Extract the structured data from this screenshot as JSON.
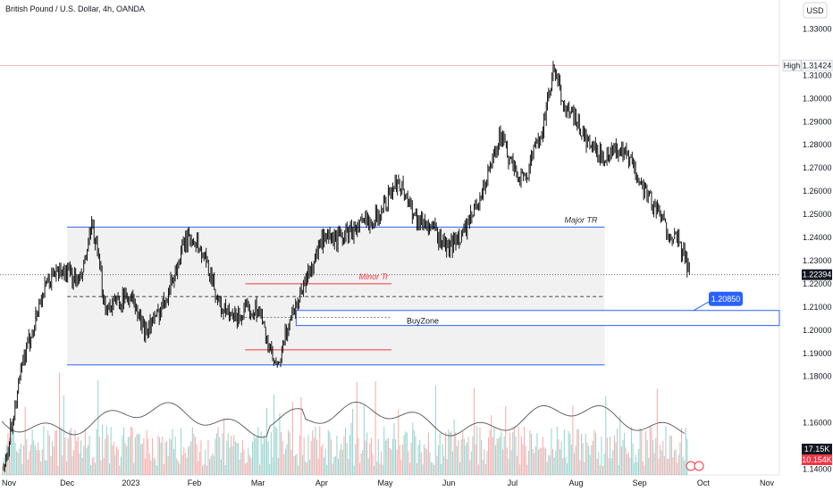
{
  "header": {
    "title": "British Pound / U.S. Dollar, 4h, OANDA",
    "currency": "USD"
  },
  "chart_data": {
    "type": "candlestick",
    "title": "British Pound / U.S. Dollar, 4h, OANDA",
    "y_unit": "USD",
    "ylim": [
      1.1325,
      1.3425
    ],
    "y_ticks": [
      "1.33000",
      "1.31000",
      "1.30000",
      "1.29000",
      "1.28000",
      "1.27000",
      "1.26000",
      "1.25000",
      "1.24000",
      "1.23000",
      "1.22000",
      "1.21000",
      "1.20000",
      "1.19000",
      "1.18000",
      "1.16000",
      "1.14000"
    ],
    "x_ticks": [
      "Nov",
      "Dec",
      "2023",
      "Feb",
      "Mar",
      "Apr",
      "May",
      "Jun",
      "Jul",
      "Aug",
      "Sep",
      "Oct",
      "Nov"
    ],
    "x_tick_pos": [
      0,
      1,
      2,
      3,
      4,
      5,
      6,
      7,
      8,
      9,
      10,
      11,
      12
    ],
    "price_path": [
      [
        0.0,
        1.14
      ],
      [
        0.3,
        1.185
      ],
      [
        0.6,
        1.215
      ],
      [
        0.8,
        1.225
      ],
      [
        1.0,
        1.225
      ],
      [
        1.2,
        1.22
      ],
      [
        1.4,
        1.245
      ],
      [
        1.6,
        1.21
      ],
      [
        2.0,
        1.215
      ],
      [
        2.2,
        1.2
      ],
      [
        2.4,
        1.205
      ],
      [
        2.7,
        1.225
      ],
      [
        2.85,
        1.238
      ],
      [
        3.0,
        1.24
      ],
      [
        3.25,
        1.225
      ],
      [
        3.4,
        1.21
      ],
      [
        3.6,
        1.205
      ],
      [
        4.0,
        1.21
      ],
      [
        4.2,
        1.19
      ],
      [
        4.3,
        1.182
      ],
      [
        4.5,
        1.205
      ],
      [
        4.8,
        1.225
      ],
      [
        5.0,
        1.238
      ],
      [
        5.3,
        1.24
      ],
      [
        5.6,
        1.245
      ],
      [
        5.9,
        1.25
      ],
      [
        6.2,
        1.265
      ],
      [
        6.5,
        1.248
      ],
      [
        6.7,
        1.245
      ],
      [
        7.0,
        1.235
      ],
      [
        7.3,
        1.245
      ],
      [
        7.6,
        1.265
      ],
      [
        7.8,
        1.285
      ],
      [
        8.0,
        1.27
      ],
      [
        8.2,
        1.265
      ],
      [
        8.5,
        1.29
      ],
      [
        8.65,
        1.313
      ],
      [
        8.8,
        1.298
      ],
      [
        9.0,
        1.29
      ],
      [
        9.2,
        1.28
      ],
      [
        9.4,
        1.275
      ],
      [
        9.6,
        1.278
      ],
      [
        9.8,
        1.275
      ],
      [
        10.0,
        1.265
      ],
      [
        10.2,
        1.255
      ],
      [
        10.4,
        1.245
      ],
      [
        10.6,
        1.238
      ],
      [
        10.8,
        1.225
      ]
    ],
    "high": {
      "label": "High",
      "value": "1.31424"
    },
    "last_price": "1.22394",
    "marker_price": "1.20850",
    "levels": [
      {
        "label": "Major TR",
        "price": 1.2445,
        "color": "#2962ff"
      },
      {
        "label": "",
        "price": 1.185,
        "color": "#2962ff"
      },
      {
        "label": "Minor Tr",
        "price": 1.22,
        "color": "#f23645"
      },
      {
        "label": "",
        "price": 1.1915,
        "color": "#f23645"
      }
    ],
    "buy_zone": {
      "label": "BuyZone",
      "top": 1.2085,
      "bottom": 1.202
    },
    "volume_readouts": [
      "17.15K",
      "10.154K"
    ]
  }
}
